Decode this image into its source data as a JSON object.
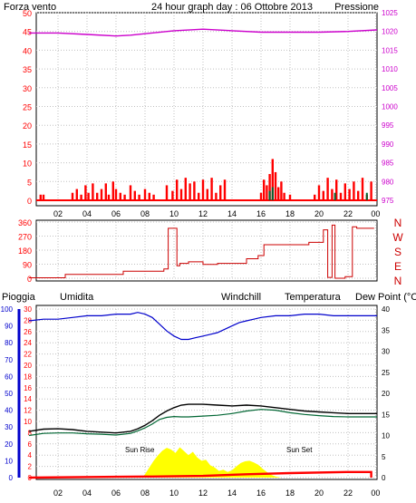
{
  "header": {
    "left_label": "Forza vento",
    "title": "24 hour graph day : 06 Ottobre 2013",
    "right_label": "Pressione"
  },
  "colors": {
    "wind": "#ff0000",
    "gust": "#ff0000",
    "pressure": "#cc00cc",
    "direction": "#cc0000",
    "humidity": "#0000cc",
    "temperature": "#000000",
    "dewpoint": "#006633",
    "windchill": "#ff8000",
    "rain": "#ff0000",
    "solar": "#ffff00",
    "grid": "#c0c0c0",
    "axis_left_blue": "#0000aa"
  },
  "bottom_legend": {
    "rain": "Pioggia",
    "humidity": "Umidita",
    "windchill": "Windchill",
    "temperature": "Temperatura",
    "dewpoint": "Dew Point (°C"
  },
  "annotations": {
    "sunrise": "Sun Rise",
    "sunset": "Sun Set"
  },
  "chart_data": [
    {
      "type": "bar",
      "title": "24 hour graph day : 06 Ottobre 2013",
      "ylabel": "Forza vento",
      "y2label": "Pressione",
      "ylim": [
        0,
        50
      ],
      "y2lim": [
        975,
        1025
      ],
      "y_ticks": [
        0,
        5,
        10,
        15,
        20,
        25,
        30,
        35,
        40,
        45,
        50
      ],
      "y2_ticks": [
        975,
        980,
        985,
        990,
        995,
        1000,
        1005,
        1010,
        1015,
        1020,
        1025
      ],
      "x_ticks": [
        "02",
        "04",
        "06",
        "08",
        "10",
        "12",
        "14",
        "16",
        "18",
        "20",
        "22",
        "00"
      ],
      "series": [
        {
          "name": "Forza vento",
          "x": [
            0.8,
            1.0,
            3.0,
            3.3,
            3.6,
            3.9,
            4.1,
            4.4,
            4.7,
            5.0,
            5.3,
            5.5,
            5.8,
            6.0,
            6.3,
            6.6,
            7.0,
            7.3,
            7.6,
            8.0,
            8.3,
            8.6,
            9.5,
            9.9,
            10.2,
            10.5,
            10.8,
            11.1,
            11.4,
            11.7,
            12.0,
            12.3,
            12.6,
            12.9,
            13.2,
            13.5,
            16.0,
            16.2,
            16.4,
            16.6,
            16.8,
            17.0,
            17.2,
            17.4,
            17.6,
            18.0,
            19.7,
            20.0,
            20.3,
            20.6,
            20.9,
            21.2,
            21.5,
            21.8,
            22.1,
            22.4,
            22.7,
            23.0,
            23.3,
            23.6
          ],
          "values": [
            1.5,
            1.5,
            2,
            3,
            1.5,
            4,
            2,
            4.5,
            2,
            3,
            4.5,
            1.5,
            5,
            3,
            2,
            1.5,
            4,
            2.5,
            1.5,
            3,
            2,
            1.5,
            4,
            2.5,
            5.5,
            3,
            6,
            4.5,
            5,
            2,
            5.5,
            3,
            6,
            2,
            4,
            5.5,
            2,
            5.5,
            4,
            7,
            11,
            7.5,
            3.5,
            5,
            2,
            1.5,
            1.5,
            4,
            2.5,
            6,
            3,
            5.5,
            2,
            4.5,
            3,
            5,
            2.5,
            6,
            1.5,
            5
          ]
        },
        {
          "name": "Pressione",
          "x": [
            0,
            2,
            4,
            6,
            7,
            8,
            10,
            12,
            14,
            16,
            18,
            20,
            22,
            24
          ],
          "values": [
            1019.6,
            1019.6,
            1019.2,
            1018.8,
            1019.0,
            1019.4,
            1020.2,
            1020.6,
            1020.2,
            1019.8,
            1019.8,
            1019.8,
            1020.0,
            1020.4
          ]
        }
      ]
    },
    {
      "type": "line",
      "ylabel_letters": [
        "N",
        "W",
        "S",
        "E",
        "N"
      ],
      "ylim": [
        0,
        360
      ],
      "y_ticks": [
        0,
        90,
        180,
        270,
        360
      ],
      "series": [
        {
          "name": "Direzione",
          "x": [
            0,
            2.5,
            2.5,
            6.5,
            6.5,
            9.3,
            9.3,
            9.6,
            9.6,
            10.2,
            10.2,
            10.4,
            10.4,
            11.0,
            11.0,
            12.0,
            12.0,
            13.0,
            13.0,
            15.0,
            15.0,
            15.8,
            15.8,
            16.2,
            16.2,
            19.3,
            19.3,
            20.3,
            20.3,
            20.6,
            20.6,
            20.9,
            20.9,
            21.1,
            21.1,
            21.8,
            21.8,
            22.3,
            22.3,
            22.6,
            22.6,
            23.8
          ],
          "values": [
            3,
            3,
            25,
            25,
            45,
            45,
            60,
            60,
            320,
            320,
            80,
            80,
            95,
            95,
            105,
            105,
            88,
            88,
            95,
            95,
            125,
            125,
            145,
            145,
            215,
            215,
            230,
            230,
            310,
            310,
            5,
            5,
            340,
            340,
            0,
            0,
            10,
            10,
            330,
            330,
            320,
            320
          ]
        }
      ]
    },
    {
      "type": "line",
      "ylabel": "Pioggia",
      "ylim": [
        0,
        30
      ],
      "y_ticks": [
        0,
        2,
        4,
        6,
        8,
        10,
        12,
        14,
        16,
        18,
        20,
        22,
        24,
        26,
        28,
        30
      ],
      "y_humidity_ticks": [
        0,
        10,
        20,
        30,
        40,
        50,
        60,
        70,
        80,
        90,
        100
      ],
      "y2lim": [
        0,
        40
      ],
      "y2_ticks": [
        0,
        5,
        10,
        15,
        20,
        25,
        30,
        35,
        40
      ],
      "x_ticks": [
        "02",
        "04",
        "06",
        "08",
        "10",
        "12",
        "14",
        "16",
        "18",
        "20",
        "22",
        "00"
      ],
      "series": [
        {
          "name": "Umidita",
          "x": [
            0,
            1,
            2,
            3,
            4,
            5,
            6,
            7,
            7.5,
            8,
            8.5,
            9,
            9.5,
            10,
            10.5,
            11,
            11.5,
            12,
            12.5,
            13,
            13.5,
            14,
            14.5,
            15,
            15.5,
            16,
            17,
            18,
            19,
            20,
            21,
            22,
            23,
            24
          ],
          "values": [
            93,
            94,
            94,
            95,
            96,
            96,
            97,
            97,
            98,
            97,
            95,
            91,
            87,
            84,
            82,
            82,
            83,
            84,
            85,
            86,
            88,
            90,
            92,
            93,
            94,
            95,
            96,
            96,
            97,
            97,
            96,
            96,
            96,
            96
          ]
        },
        {
          "name": "Temperatura",
          "x": [
            0,
            1,
            2,
            3,
            4,
            5,
            6,
            7,
            7.5,
            8,
            8.5,
            9,
            9.5,
            10,
            10.5,
            11,
            12,
            13,
            14,
            15,
            16,
            17,
            18,
            19,
            20,
            21,
            22,
            23,
            24
          ],
          "values": [
            11.0,
            11.5,
            11.6,
            11.4,
            11.0,
            10.8,
            10.6,
            11.0,
            11.6,
            12.4,
            13.5,
            14.8,
            15.8,
            16.6,
            17.2,
            17.4,
            17.4,
            17.2,
            17.0,
            17.2,
            17.0,
            16.6,
            16.2,
            15.8,
            15.6,
            15.4,
            15.2,
            15.2,
            15.2
          ]
        },
        {
          "name": "Dew Point (°C",
          "x": [
            0,
            1,
            2,
            3,
            4,
            5,
            6,
            7,
            7.5,
            8,
            8.5,
            9,
            9.5,
            10,
            10.5,
            11,
            12,
            13,
            14,
            15,
            16,
            17,
            18,
            19,
            20,
            21,
            22,
            23,
            24
          ],
          "values": [
            10.0,
            10.5,
            10.6,
            10.6,
            10.4,
            10.3,
            10.1,
            10.5,
            11.1,
            11.8,
            12.7,
            13.8,
            14.3,
            14.5,
            14.4,
            14.4,
            14.6,
            14.8,
            15.2,
            15.8,
            16.2,
            16.0,
            15.4,
            15.0,
            14.7,
            14.5,
            14.4,
            14.4,
            14.4
          ]
        },
        {
          "name": "Pioggia",
          "x": [
            0,
            8,
            8.5,
            12,
            15,
            18,
            22,
            23.6,
            23.6
          ],
          "values": [
            0,
            0.2,
            0.2,
            0.3,
            0.6,
            0.8,
            1.0,
            1.0,
            0
          ]
        }
      ],
      "solar": {
        "x": [
          7.8,
          8.0,
          8.3,
          8.6,
          8.9,
          9.2,
          9.5,
          9.8,
          10.1,
          10.4,
          10.7,
          11.0,
          11.3,
          11.6,
          11.9,
          12.2,
          12.5,
          12.8,
          13.1,
          13.4,
          13.7,
          14.0,
          14.3,
          14.6,
          14.9,
          15.2,
          15.5,
          15.8,
          16.1,
          16.4,
          16.7,
          17.0,
          17.4
        ],
        "values": [
          0,
          0.6,
          1.8,
          3.0,
          4.0,
          4.8,
          5.3,
          5.0,
          4.4,
          5.4,
          4.7,
          4.0,
          4.6,
          3.6,
          3.0,
          3.2,
          2.2,
          1.8,
          1.2,
          1.4,
          1.0,
          1.3,
          2.0,
          2.6,
          2.9,
          3.0,
          2.7,
          2.3,
          1.6,
          1.0,
          0.5,
          0.2,
          0
        ]
      }
    }
  ]
}
